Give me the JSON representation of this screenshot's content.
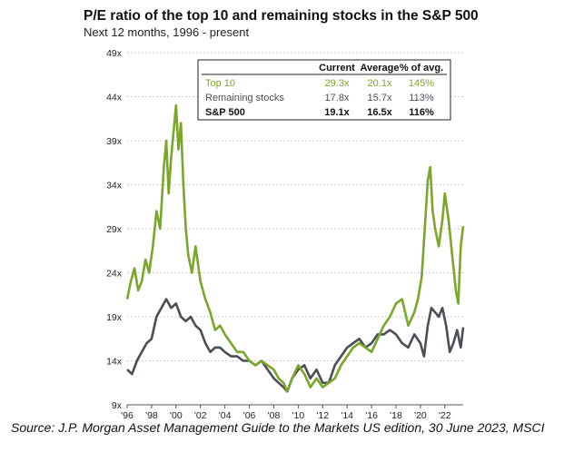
{
  "source": "Source: J.P. Morgan Asset Management Guide to the Markets US edition, 30 June 2023, MSCI",
  "colors": {
    "top10": "#7aa62a",
    "remaining": "#4a4f55",
    "sp500": "#111111",
    "grid": "#d0d0d0"
  },
  "chart_data": {
    "type": "line",
    "title": "P/E ratio of the top 10 and remaining stocks in the S&P 500",
    "subtitle": "Next 12 months, 1996 - present",
    "xlabel": "",
    "ylabel": "",
    "xlim": [
      1996,
      2023.5
    ],
    "ylim": [
      9,
      49
    ],
    "x_ticks": [
      1996,
      1998,
      2000,
      2002,
      2004,
      2006,
      2008,
      2010,
      2012,
      2014,
      2016,
      2018,
      2020,
      2022
    ],
    "x_tick_labels": [
      "'96",
      "'98",
      "'00",
      "'02",
      "'04",
      "'06",
      "'08",
      "'10",
      "'12",
      "'14",
      "'16",
      "'18",
      "'20",
      "'22"
    ],
    "y_ticks": [
      9,
      14,
      19,
      24,
      29,
      34,
      39,
      44,
      49
    ],
    "y_tick_labels": [
      "9x",
      "14x",
      "19x",
      "24x",
      "29x",
      "34x",
      "39x",
      "44x",
      "49x"
    ],
    "grid": true,
    "series": [
      {
        "name": "Top 10",
        "x": [
          1996.0,
          1996.3,
          1996.6,
          1996.9,
          1997.2,
          1997.5,
          1997.8,
          1998.1,
          1998.4,
          1998.7,
          1999.0,
          1999.2,
          1999.4,
          1999.6,
          1999.8,
          2000.0,
          2000.2,
          2000.4,
          2000.6,
          2000.8,
          2001.0,
          2001.3,
          2001.6,
          2002.0,
          2002.4,
          2002.8,
          2003.2,
          2003.6,
          2004.0,
          2004.5,
          2005.0,
          2005.5,
          2006.0,
          2006.5,
          2007.0,
          2007.5,
          2008.0,
          2008.4,
          2008.8,
          2009.1,
          2009.5,
          2010.0,
          2010.5,
          2011.0,
          2011.5,
          2012.0,
          2012.5,
          2013.0,
          2013.5,
          2014.0,
          2014.5,
          2015.0,
          2015.5,
          2016.0,
          2016.5,
          2017.0,
          2017.5,
          2018.0,
          2018.5,
          2019.0,
          2019.5,
          2019.8,
          2020.1,
          2020.4,
          2020.6,
          2020.8,
          2021.0,
          2021.2,
          2021.5,
          2021.8,
          2022.0,
          2022.3,
          2022.6,
          2022.9,
          2023.1,
          2023.3,
          2023.5
        ],
        "values": [
          21,
          23,
          24.5,
          22,
          23,
          25.5,
          24,
          27,
          31,
          29,
          36,
          39,
          33,
          37,
          40,
          43,
          38,
          41,
          34,
          29,
          26,
          24,
          27,
          23,
          21,
          19.5,
          17.5,
          18,
          17,
          16,
          15,
          15,
          14,
          13.5,
          14,
          13.5,
          13,
          12,
          11.5,
          10.5,
          12,
          13.5,
          12.5,
          11,
          12,
          11,
          11.5,
          12,
          13.5,
          14.5,
          15.5,
          16,
          15.5,
          15,
          16.5,
          18,
          19,
          20.5,
          21,
          18,
          19.5,
          21,
          23.5,
          30,
          34.5,
          36,
          31,
          29,
          27,
          30,
          33,
          30,
          26,
          22,
          20.5,
          27,
          29.3
        ]
      },
      {
        "name": "Remaining stocks",
        "x": [
          1996.0,
          1996.4,
          1996.8,
          1997.2,
          1997.6,
          1998.0,
          1998.4,
          1998.8,
          1999.2,
          1999.6,
          2000.0,
          2000.4,
          2000.8,
          2001.2,
          2001.6,
          2002.0,
          2002.4,
          2002.8,
          2003.2,
          2003.6,
          2004.0,
          2004.5,
          2005.0,
          2005.5,
          2006.0,
          2006.5,
          2007.0,
          2007.5,
          2008.0,
          2008.4,
          2008.8,
          2009.1,
          2009.5,
          2010.0,
          2010.5,
          2011.0,
          2011.5,
          2012.0,
          2012.5,
          2013.0,
          2013.5,
          2014.0,
          2014.5,
          2015.0,
          2015.5,
          2016.0,
          2016.5,
          2017.0,
          2017.5,
          2018.0,
          2018.5,
          2019.0,
          2019.5,
          2020.0,
          2020.3,
          2020.6,
          2020.9,
          2021.2,
          2021.5,
          2021.8,
          2022.1,
          2022.4,
          2022.7,
          2023.0,
          2023.3,
          2023.5
        ],
        "values": [
          13,
          12.5,
          14,
          15,
          16,
          16.5,
          19,
          20,
          21,
          20,
          20.5,
          19,
          18.5,
          19,
          18,
          17.5,
          16,
          15,
          15.5,
          15.5,
          15,
          14.5,
          14.5,
          14,
          14,
          13.5,
          14,
          13,
          12,
          11.5,
          11,
          10.5,
          12,
          13,
          13.5,
          12,
          13,
          11.5,
          11.5,
          13.5,
          14.5,
          15.5,
          16,
          16.5,
          15.5,
          16,
          17,
          17,
          17.5,
          17,
          16,
          15.5,
          17,
          16,
          14.5,
          18,
          20,
          19.5,
          19,
          20,
          18,
          15,
          16,
          17.5,
          15.5,
          17.8
        ]
      }
    ],
    "legend_table": {
      "headers": [
        "",
        "Current",
        "Average",
        "% of avg."
      ],
      "rows": [
        {
          "name": "Top 10",
          "current": "29.3x",
          "average": "20.1x",
          "pct": "145%"
        },
        {
          "name": "Remaining stocks",
          "current": "17.8x",
          "average": "15.7x",
          "pct": "113%"
        },
        {
          "name": "S&P 500",
          "current": "19.1x",
          "average": "16.5x",
          "pct": "116%"
        }
      ],
      "placement": "top-right"
    }
  }
}
